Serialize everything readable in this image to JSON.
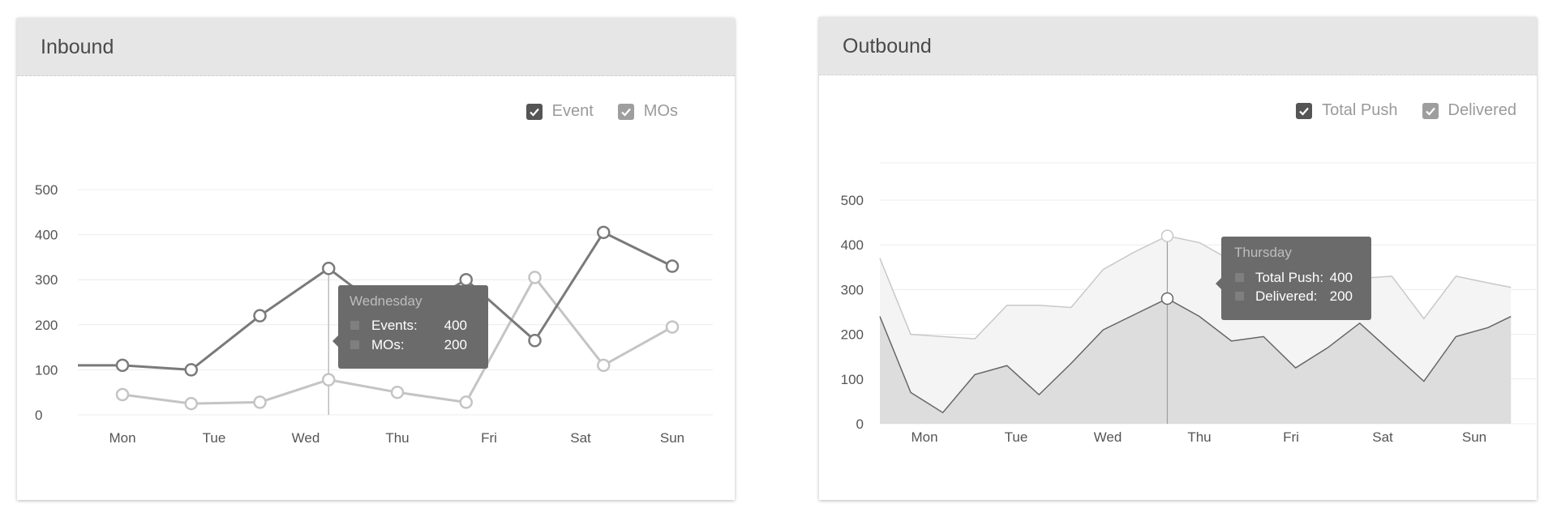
{
  "inbound": {
    "title": "Inbound",
    "legend": [
      {
        "label": "Event",
        "color": "#555555"
      },
      {
        "label": "MOs",
        "color": "#9e9e9e"
      }
    ],
    "tooltip": {
      "title": "Wednesday",
      "rows": [
        {
          "label": "Events:",
          "value": "400"
        },
        {
          "label": "MOs:",
          "value": "200"
        }
      ]
    }
  },
  "outbound": {
    "title": "Outbound",
    "legend": [
      {
        "label": "Total Push",
        "color": "#555555"
      },
      {
        "label": "Delivered",
        "color": "#9e9e9e"
      }
    ],
    "tooltip": {
      "title": "Thursday",
      "rows": [
        {
          "label": "Total Push:",
          "value": "400"
        },
        {
          "label": "Delivered:",
          "value": "200"
        }
      ]
    }
  },
  "chart_data": [
    {
      "type": "line",
      "title": "Inbound",
      "categories": [
        "Mon",
        "Tue",
        "Wed",
        "Thu",
        "Fri",
        "Sat",
        "Sun"
      ],
      "yticks": [
        0,
        100,
        200,
        300,
        400,
        500
      ],
      "ylim": [
        0,
        500
      ],
      "grid": true,
      "legend_position": "top-right",
      "series": [
        {
          "name": "Event",
          "color": "#7a7a7a",
          "x": [
            -0.5,
            0,
            0.75,
            1.5,
            2.25,
            3,
            3.75,
            4.5,
            5.25,
            6
          ],
          "y": [
            110,
            110,
            100,
            220,
            325,
            210,
            300,
            165,
            405,
            330
          ]
        },
        {
          "name": "MOs",
          "color": "#c4c4c4",
          "x": [
            0,
            0.75,
            1.5,
            2.25,
            3,
            3.75,
            4.5,
            5.25,
            6
          ],
          "y": [
            45,
            25,
            28,
            78,
            50,
            28,
            305,
            110,
            195
          ]
        }
      ]
    },
    {
      "type": "area",
      "title": "Outbound",
      "categories": [
        "Mon",
        "Tue",
        "Wed",
        "Thu",
        "Fri",
        "Sat",
        "Sun"
      ],
      "yticks": [
        0,
        100,
        200,
        300,
        400,
        500
      ],
      "ylim": [
        0,
        500
      ],
      "grid": true,
      "legend_position": "top-right",
      "series": [
        {
          "name": "Total Push",
          "color": "#c8c8c8",
          "fill": "#f4f4f4",
          "x": [
            -0.5,
            -0.15,
            0.2,
            0.55,
            0.9,
            1.25,
            1.6,
            1.95,
            2.3,
            2.65,
            3,
            3.35,
            3.7,
            4.05,
            4.4,
            4.75,
            5.1,
            5.45,
            5.8,
            6.15,
            6.4
          ],
          "y": [
            370,
            200,
            195,
            190,
            265,
            265,
            260,
            345,
            385,
            420,
            405,
            365,
            350,
            345,
            345,
            325,
            330,
            235,
            330,
            315,
            305
          ]
        },
        {
          "name": "Delivered",
          "color": "#666666",
          "fill": "#dddddd",
          "x": [
            -0.5,
            -0.15,
            0.2,
            0.55,
            0.9,
            1.25,
            1.6,
            1.95,
            2.3,
            2.65,
            3,
            3.35,
            3.7,
            4.05,
            4.4,
            4.75,
            5.1,
            5.45,
            5.8,
            6.15,
            6.4
          ],
          "y": [
            240,
            70,
            25,
            110,
            130,
            65,
            135,
            210,
            245,
            280,
            240,
            185,
            195,
            125,
            170,
            225,
            160,
            95,
            195,
            215,
            240
          ]
        }
      ]
    }
  ]
}
